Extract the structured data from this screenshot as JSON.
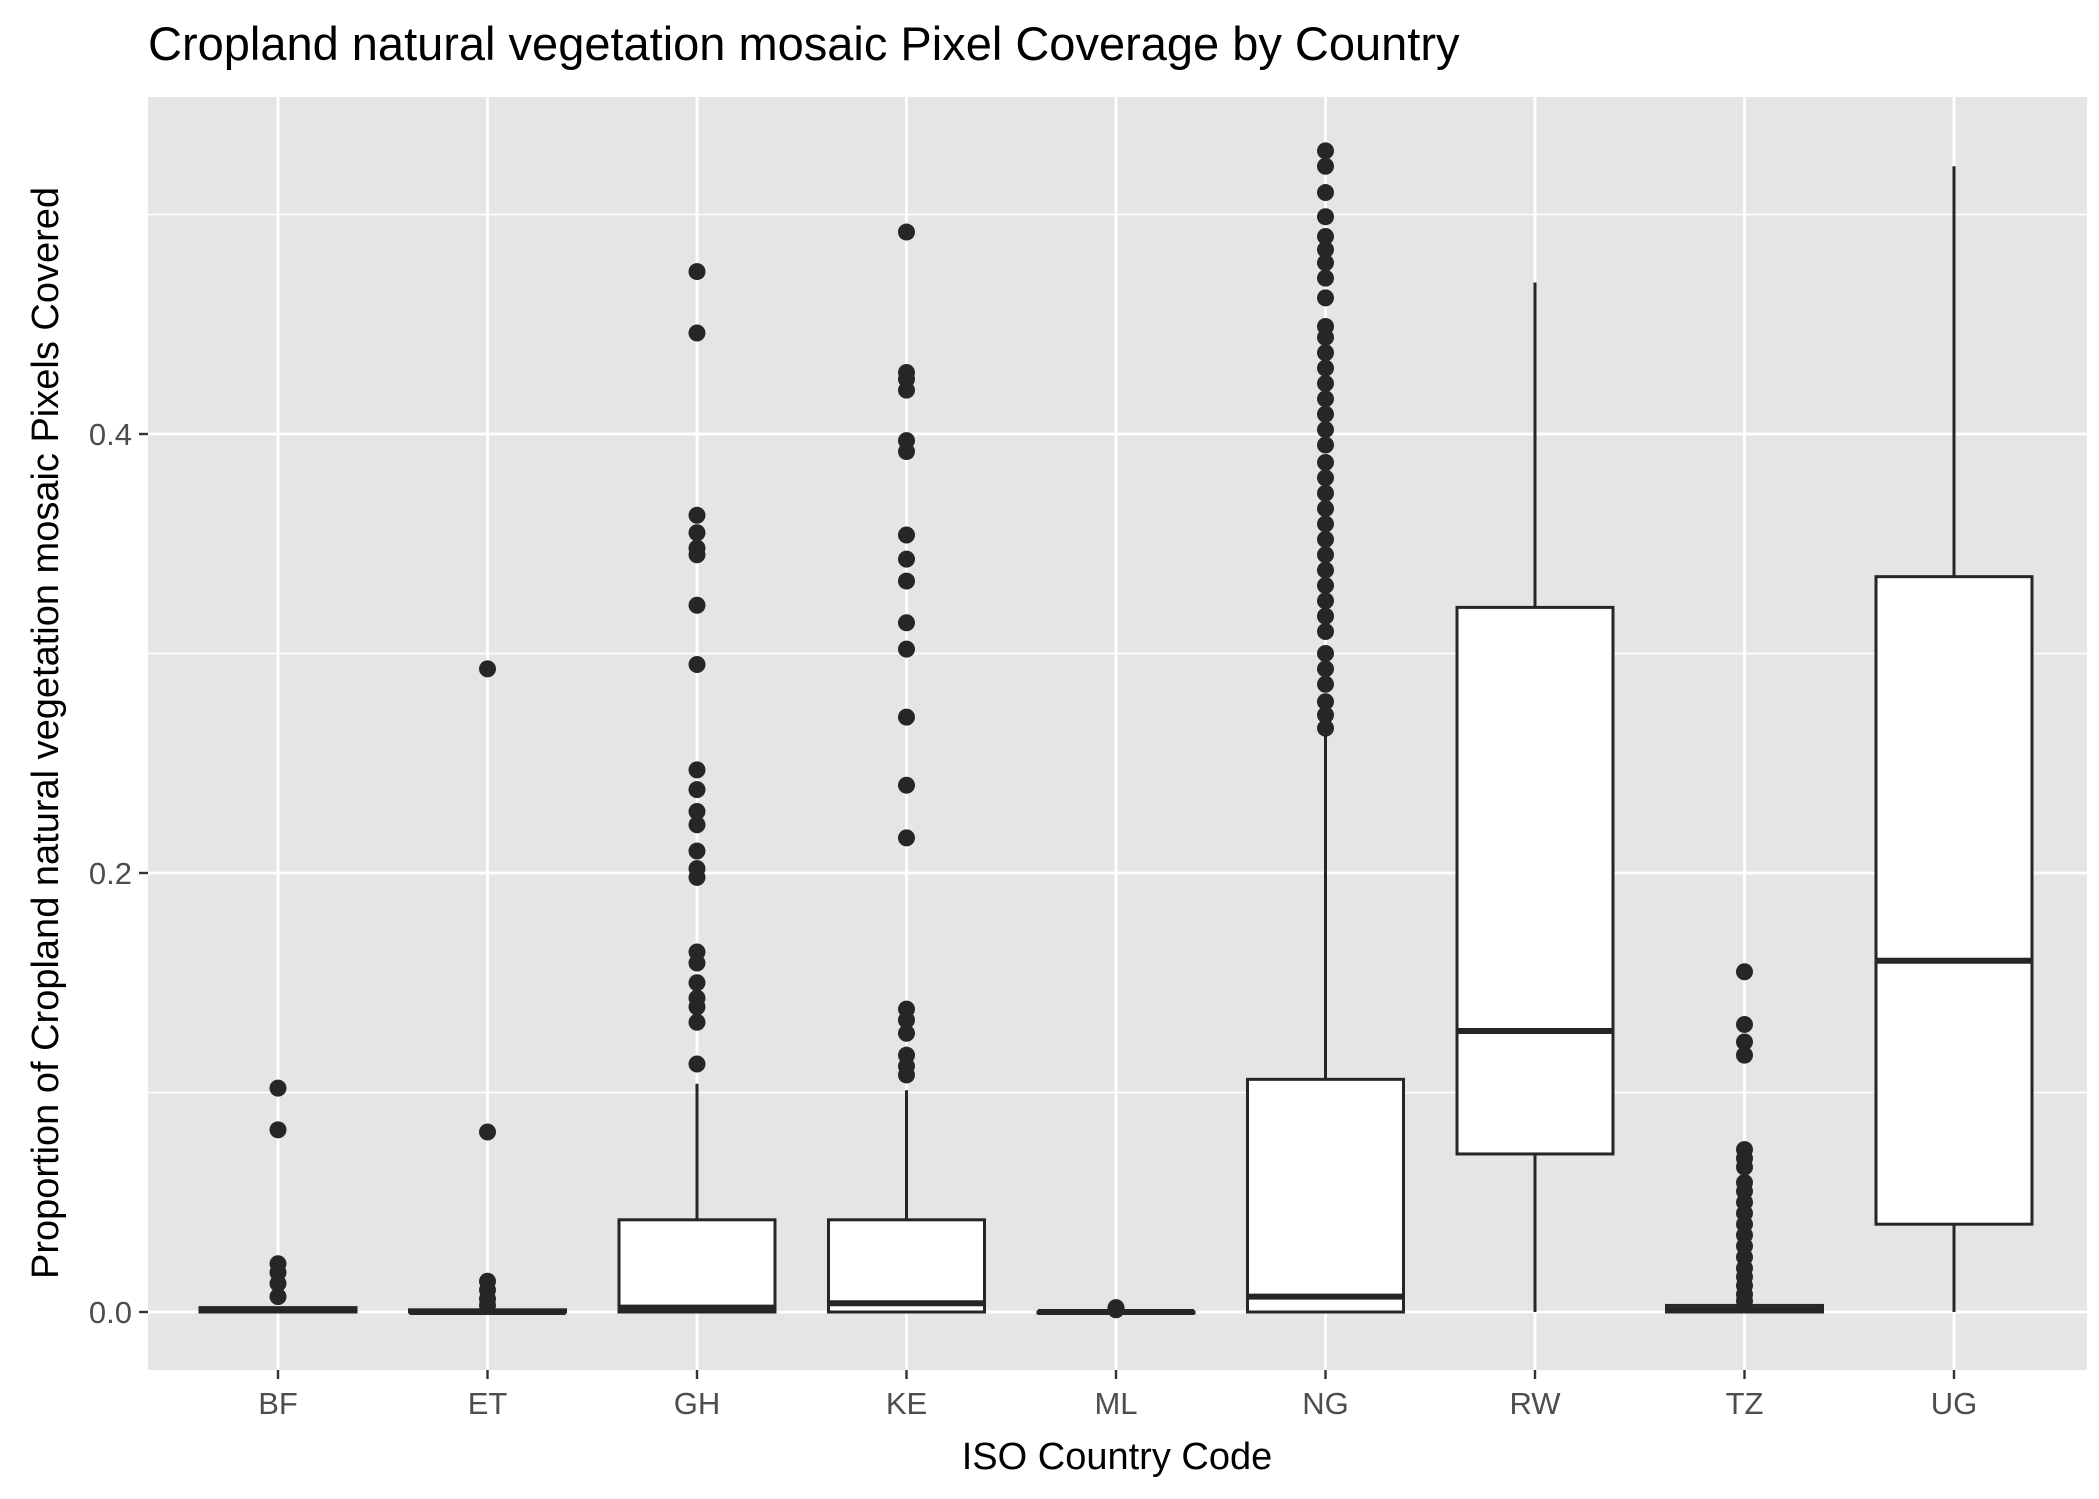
{
  "chart_data": {
    "type": "boxplot",
    "title": "Cropland natural vegetation mosaic Pixel Coverage by Country",
    "xlabel": "ISO Country Code",
    "ylabel": "Proportion of Cropland natural vegetation mosaic Pixels Covered",
    "ylim": [
      -0.026,
      0.55
    ],
    "y_ticks": [
      0.0,
      0.2,
      0.4
    ],
    "y_tick_labels": [
      "0.0",
      "0.2",
      "0.4"
    ],
    "grid": true,
    "categories": [
      "BF",
      "ET",
      "GH",
      "KE",
      "ML",
      "NG",
      "RW",
      "TZ",
      "UG"
    ],
    "boxes": [
      {
        "category": "BF",
        "whisker_low": 0.0,
        "q1": 0.0,
        "median": 0.001,
        "q3": 0.002,
        "whisker_high": 0.002,
        "outliers": [
          0.102,
          0.083,
          0.022,
          0.018,
          0.013,
          0.007
        ]
      },
      {
        "category": "ET",
        "whisker_low": 0.0,
        "q1": 0.0,
        "median": 0.0,
        "q3": 0.001,
        "whisker_high": 0.001,
        "outliers": [
          0.293,
          0.082,
          0.014,
          0.01,
          0.006,
          0.003
        ]
      },
      {
        "category": "GH",
        "whisker_low": 0.0,
        "q1": 0.0,
        "median": 0.002,
        "q3": 0.042,
        "whisker_high": 0.104,
        "outliers": [
          0.474,
          0.446,
          0.363,
          0.355,
          0.348,
          0.345,
          0.322,
          0.295,
          0.247,
          0.238,
          0.228,
          0.222,
          0.21,
          0.202,
          0.198,
          0.164,
          0.159,
          0.15,
          0.143,
          0.139,
          0.132,
          0.113
        ]
      },
      {
        "category": "KE",
        "whisker_low": 0.0,
        "q1": 0.0,
        "median": 0.004,
        "q3": 0.042,
        "whisker_high": 0.101,
        "outliers": [
          0.492,
          0.428,
          0.425,
          0.42,
          0.397,
          0.392,
          0.354,
          0.343,
          0.333,
          0.314,
          0.302,
          0.271,
          0.24,
          0.216,
          0.138,
          0.133,
          0.127,
          0.117,
          0.112,
          0.108
        ]
      },
      {
        "category": "ML",
        "whisker_low": 0.0,
        "q1": 0.0,
        "median": 0.0,
        "q3": 0.0,
        "whisker_high": 0.0,
        "outliers": [
          0.002,
          0.001
        ]
      },
      {
        "category": "NG",
        "whisker_low": 0.0,
        "q1": 0.0,
        "median": 0.007,
        "q3": 0.106,
        "whisker_high": 0.263,
        "outliers": [
          0.529,
          0.522,
          0.51,
          0.499,
          0.49,
          0.484,
          0.478,
          0.471,
          0.462,
          0.449,
          0.444,
          0.437,
          0.43,
          0.423,
          0.416,
          0.409,
          0.402,
          0.395,
          0.387,
          0.38,
          0.373,
          0.366,
          0.359,
          0.352,
          0.345,
          0.338,
          0.331,
          0.324,
          0.317,
          0.31,
          0.3,
          0.293,
          0.286,
          0.278,
          0.272,
          0.266
        ]
      },
      {
        "category": "RW",
        "whisker_low": 0.0,
        "q1": 0.072,
        "median": 0.128,
        "q3": 0.321,
        "whisker_high": 0.469,
        "outliers": []
      },
      {
        "category": "TZ",
        "whisker_low": 0.0,
        "q1": 0.0,
        "median": 0.001,
        "q3": 0.003,
        "whisker_high": 0.003,
        "outliers": [
          0.155,
          0.131,
          0.123,
          0.117,
          0.074,
          0.07,
          0.066,
          0.059,
          0.055,
          0.05,
          0.045,
          0.04,
          0.035,
          0.03,
          0.025,
          0.02,
          0.016,
          0.012,
          0.008,
          0.005
        ]
      },
      {
        "category": "UG",
        "whisker_low": 0.0,
        "q1": 0.04,
        "median": 0.16,
        "q3": 0.335,
        "whisker_high": 0.522,
        "outliers": []
      }
    ],
    "colors": {
      "panel_background": "#e5e5e5",
      "grid": "#ffffff",
      "box_fill": "#ffffff",
      "box_stroke": "#262626",
      "outlier": "#262626"
    }
  }
}
